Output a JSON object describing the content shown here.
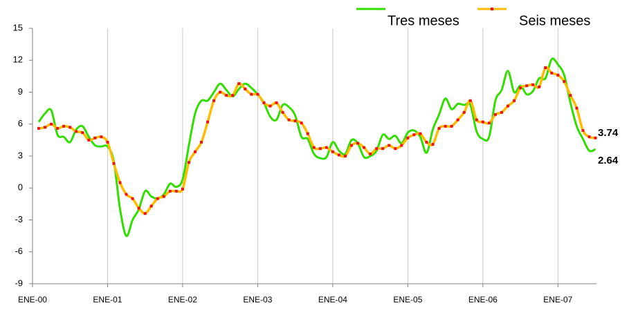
{
  "chart_data": {
    "type": "line",
    "categories": [
      "ENE-00",
      null,
      null,
      null,
      null,
      null,
      null,
      null,
      null,
      null,
      null,
      null,
      "ENE-01",
      null,
      null,
      null,
      null,
      null,
      null,
      null,
      null,
      null,
      null,
      null,
      "ENE-02",
      null,
      null,
      null,
      null,
      null,
      null,
      null,
      null,
      null,
      null,
      null,
      "ENE-03",
      null,
      null,
      null,
      null,
      null,
      null,
      null,
      null,
      null,
      null,
      null,
      "ENE-04",
      null,
      null,
      null,
      null,
      null,
      null,
      null,
      null,
      null,
      null,
      null,
      "ENE-05",
      null,
      null,
      null,
      null,
      null,
      null,
      null,
      null,
      null,
      null,
      null,
      "ENE-06",
      null,
      null,
      null,
      null,
      null,
      null,
      null,
      null,
      null,
      null,
      null,
      "ENE-07",
      null,
      null,
      null,
      null,
      null
    ],
    "series": [
      {
        "name": "Tres meses",
        "color": "#33dd00",
        "values": [
          6.2,
          7.0,
          7.3,
          5.0,
          4.8,
          4.3,
          5.5,
          5.8,
          4.8,
          4.0,
          3.9,
          3.9,
          2.5,
          -2,
          -4.5,
          -3,
          -2.0,
          -0.3,
          -0.8,
          -1.0,
          -0.6,
          0.4,
          0.1,
          0.8,
          4,
          7,
          8.2,
          8.2,
          9.0,
          9.8,
          9.2,
          8.6,
          9.3,
          9.8,
          9.4,
          8.8,
          8.0,
          6.7,
          6.4,
          7.8,
          7.6,
          6.8,
          4.8,
          4.6,
          3.2,
          2.8,
          2.9,
          4.3,
          3.5,
          3.2,
          4.5,
          4.2,
          2.9,
          3.0,
          3.5,
          5.0,
          4.6,
          4.9,
          4.2,
          5.2,
          5.4,
          4.8,
          3.3,
          5.5,
          6.9,
          8.4,
          7.4,
          7.9,
          7.8,
          7.8,
          5.3,
          4.6,
          4.8,
          8.2,
          9.2,
          11.0,
          9.0,
          9.6,
          8.8,
          9.1,
          10.3,
          10.3,
          12.1,
          11.6,
          10.6,
          8.0,
          5.8,
          4.6,
          3.5,
          3.64
        ]
      },
      {
        "name": "Seis meses",
        "color": "#ffbb00",
        "marker_color": "#ee1111",
        "values": [
          5.6,
          5.7,
          6.0,
          5.6,
          5.8,
          5.7,
          5.3,
          5.2,
          4.5,
          4.7,
          4.8,
          4.3,
          2.3,
          0.5,
          -0.6,
          -1.0,
          -1.9,
          -2.4,
          -1.7,
          -1.0,
          -0.8,
          -0.3,
          -0.3,
          -0.1,
          2.4,
          3.4,
          4.3,
          6.2,
          8.2,
          9.0,
          8.7,
          8.7,
          9.8,
          9.3,
          8.8,
          8.8,
          8.0,
          7.7,
          8.0,
          7.1,
          6.4,
          6.3,
          6.1,
          5.1,
          3.8,
          3.7,
          3.8,
          3.4,
          3.1,
          3.0,
          4.0,
          4.2,
          3.8,
          3.2,
          3.7,
          3.7,
          4.0,
          3.7,
          4.0,
          4.7,
          5.0,
          5.1,
          4.3,
          4.1,
          5.6,
          5.8,
          5.8,
          6.4,
          7.1,
          8.2,
          6.4,
          6.2,
          6.1,
          6.9,
          7.1,
          7.7,
          8.2,
          9.4,
          9.6,
          9.7,
          9.5,
          11.3,
          10.8,
          10.6,
          10.0,
          8.7,
          7.5,
          5.4,
          4.8,
          4.7
        ]
      }
    ],
    "annotations": [
      "3.74",
      "2.64"
    ],
    "ylim": [
      -9,
      15
    ],
    "yticks": [
      -9,
      -6,
      -3,
      0,
      3,
      6,
      9,
      12,
      15
    ],
    "grid": "vertical",
    "legend": "top-right"
  }
}
